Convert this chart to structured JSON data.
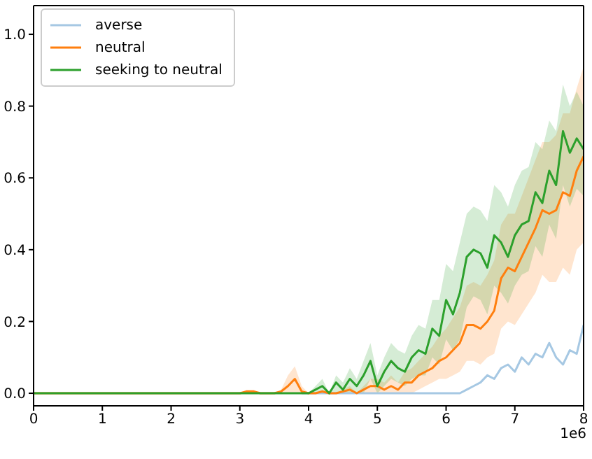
{
  "chart_data": {
    "type": "line",
    "x": [
      0,
      3.0,
      3.1,
      3.2,
      3.3,
      3.4,
      3.5,
      3.6,
      3.7,
      3.8,
      3.9,
      4.0,
      4.1,
      4.2,
      4.3,
      4.4,
      4.5,
      4.6,
      4.7,
      4.8,
      4.9,
      5.0,
      5.1,
      5.2,
      5.3,
      5.4,
      5.5,
      5.6,
      5.7,
      5.8,
      5.9,
      6.0,
      6.1,
      6.2,
      6.3,
      6.4,
      6.5,
      6.6,
      6.7,
      6.8,
      6.9,
      7.0,
      7.1,
      7.2,
      7.3,
      7.4,
      7.5,
      7.6,
      7.7,
      7.8,
      7.9,
      8.0
    ],
    "series": [
      {
        "name": "averse",
        "color": "#a6c8e3",
        "values": [
          null,
          null,
          null,
          null,
          null,
          null,
          null,
          null,
          null,
          null,
          0,
          0,
          0,
          0,
          0,
          0,
          0,
          0,
          0,
          0,
          0,
          0,
          0,
          0,
          0,
          0,
          0,
          0,
          0,
          0,
          0,
          0,
          0,
          0,
          0.01,
          0.02,
          0.03,
          0.05,
          0.04,
          0.07,
          0.08,
          0.06,
          0.1,
          0.08,
          0.11,
          0.1,
          0.14,
          0.1,
          0.08,
          0.12,
          0.11,
          0.19
        ]
      },
      {
        "name": "neutral",
        "color": "#ff7f0e",
        "values": [
          0,
          0,
          0.005,
          0.005,
          0,
          0,
          0,
          0.005,
          0.02,
          0.04,
          0.005,
          0,
          0,
          0.005,
          0,
          0,
          0.005,
          0.01,
          0,
          0.01,
          0.02,
          0.02,
          0.01,
          0.02,
          0.01,
          0.03,
          0.03,
          0.05,
          0.06,
          0.07,
          0.09,
          0.1,
          0.12,
          0.14,
          0.19,
          0.19,
          0.18,
          0.2,
          0.23,
          0.32,
          0.35,
          0.34,
          0.38,
          0.42,
          0.46,
          0.51,
          0.5,
          0.51,
          0.56,
          0.55,
          0.62,
          0.66
        ],
        "lower": [
          0,
          0,
          0,
          0,
          0,
          0,
          0,
          0,
          0,
          0,
          0,
          0,
          0,
          0,
          0,
          0,
          0,
          0,
          0,
          0,
          0,
          0,
          0,
          0,
          0,
          0,
          0,
          0.01,
          0.02,
          0.03,
          0.04,
          0.04,
          0.05,
          0.06,
          0.09,
          0.09,
          0.08,
          0.1,
          0.11,
          0.18,
          0.2,
          0.19,
          0.22,
          0.25,
          0.28,
          0.33,
          0.31,
          0.31,
          0.35,
          0.33,
          0.4,
          0.42
        ],
        "upper": [
          0,
          0,
          0.01,
          0.01,
          0,
          0,
          0,
          0.01,
          0.05,
          0.075,
          0.02,
          0,
          0,
          0.01,
          0,
          0,
          0.01,
          0.02,
          0,
          0.02,
          0.04,
          0.04,
          0.03,
          0.05,
          0.03,
          0.06,
          0.07,
          0.09,
          0.11,
          0.13,
          0.16,
          0.18,
          0.21,
          0.24,
          0.3,
          0.31,
          0.3,
          0.33,
          0.37,
          0.47,
          0.5,
          0.5,
          0.55,
          0.6,
          0.65,
          0.7,
          0.7,
          0.72,
          0.78,
          0.78,
          0.85,
          0.91
        ]
      },
      {
        "name": "seeking to neutral",
        "color": "#2ca02c",
        "values": [
          0,
          0,
          0,
          0,
          0,
          0,
          0,
          0,
          0,
          0,
          0,
          0,
          0.01,
          0.02,
          0,
          0.03,
          0.01,
          0.04,
          0.02,
          0.05,
          0.09,
          0.02,
          0.06,
          0.09,
          0.07,
          0.06,
          0.1,
          0.12,
          0.11,
          0.18,
          0.16,
          0.26,
          0.22,
          0.28,
          0.38,
          0.4,
          0.39,
          0.35,
          0.44,
          0.42,
          0.38,
          0.44,
          0.47,
          0.48,
          0.56,
          0.53,
          0.62,
          0.58,
          0.73,
          0.67,
          0.71,
          0.68
        ],
        "lower": [
          0,
          0,
          0,
          0,
          0,
          0,
          0,
          0,
          0,
          0,
          0,
          0,
          0,
          0,
          0,
          0,
          0,
          0,
          0,
          0,
          0.04,
          0,
          0.02,
          0.04,
          0.03,
          0.02,
          0.04,
          0.05,
          0.05,
          0.1,
          0.08,
          0.15,
          0.12,
          0.15,
          0.24,
          0.27,
          0.26,
          0.22,
          0.3,
          0.28,
          0.25,
          0.3,
          0.33,
          0.34,
          0.41,
          0.38,
          0.47,
          0.43,
          0.58,
          0.52,
          0.57,
          0.55
        ],
        "upper": [
          0,
          0,
          0,
          0,
          0,
          0,
          0,
          0,
          0,
          0,
          0,
          0,
          0.02,
          0.04,
          0,
          0.05,
          0.03,
          0.07,
          0.04,
          0.09,
          0.14,
          0.05,
          0.1,
          0.14,
          0.12,
          0.11,
          0.16,
          0.19,
          0.18,
          0.26,
          0.26,
          0.36,
          0.34,
          0.42,
          0.5,
          0.52,
          0.51,
          0.48,
          0.58,
          0.56,
          0.52,
          0.58,
          0.62,
          0.63,
          0.7,
          0.68,
          0.76,
          0.73,
          0.86,
          0.8,
          0.84,
          0.8
        ]
      }
    ],
    "xlim": [
      0,
      8
    ],
    "xticks": [
      0,
      1,
      2,
      3,
      4,
      5,
      6,
      7,
      8
    ],
    "ylim": [
      -0.035,
      1.08
    ],
    "yticks": [
      {
        "value": 0,
        "label": "0.0"
      },
      {
        "value": 0.2,
        "label": "0.2"
      },
      {
        "value": 0.4,
        "label": "0.4"
      },
      {
        "value": 0.6,
        "label": "0.6"
      },
      {
        "value": 0.8,
        "label": "0.8"
      },
      {
        "value": 1,
        "label": "1.0"
      }
    ],
    "annotations": [
      "1e6"
    ],
    "legend": "top left",
    "grid": false,
    "marker": "none",
    "line_style": "solid"
  }
}
